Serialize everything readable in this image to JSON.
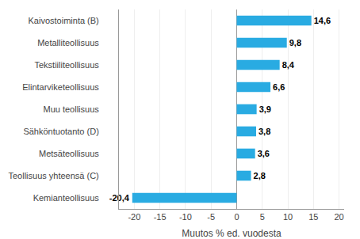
{
  "chart_data": {
    "type": "bar",
    "orientation": "horizontal",
    "categories": [
      "Kemianteollisuus",
      "Teollisuus yhteensä (C)",
      "Metsäteollisuus",
      "Sähköntuotanto (D)",
      "Muu teollisuus",
      "Elintarviketeollisuus",
      "Tekstiiliteollisuus",
      "Metalliteollisuus",
      "Kaivostoiminta (B)"
    ],
    "values": [
      -20.4,
      2.8,
      3.6,
      3.8,
      3.9,
      6.6,
      8.4,
      9.8,
      14.6
    ],
    "value_labels": [
      "-20,4",
      "2,8",
      "3,6",
      "3,8",
      "3,9",
      "6,6",
      "8,4",
      "9,8",
      "14,6"
    ],
    "data_labels": true,
    "color": "#29abe2",
    "xlabel": "Muutos % ed. vuodesta",
    "xlim": [
      -23,
      21
    ],
    "xticks": [
      -20,
      -15,
      -10,
      -5,
      0,
      5,
      10,
      15,
      20
    ],
    "grid": true
  }
}
